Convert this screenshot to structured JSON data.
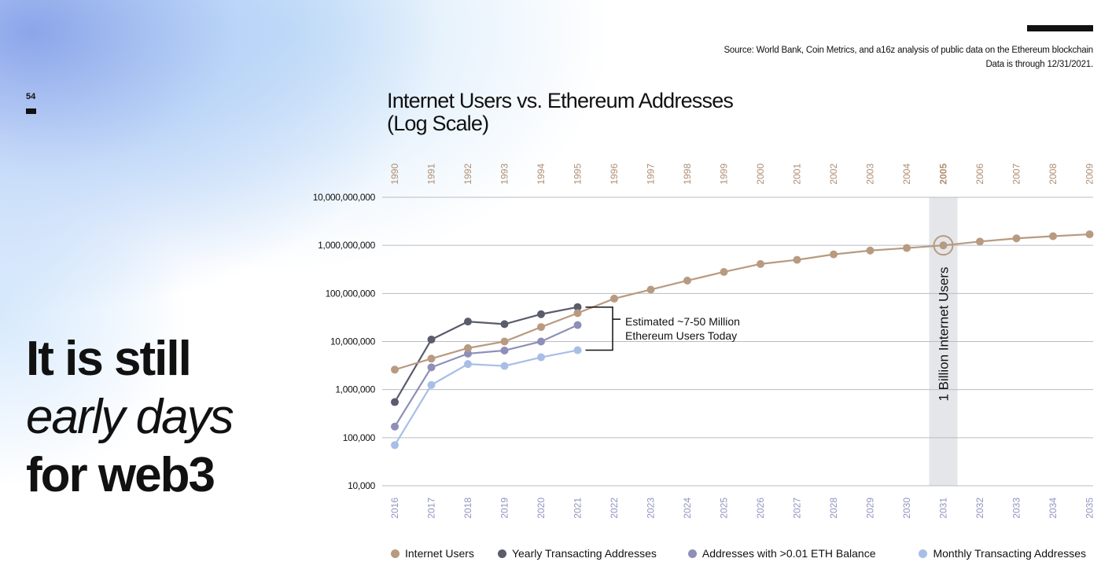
{
  "page": {
    "number": "54",
    "headline_line1": "It is still",
    "headline_line2": "early days",
    "headline_line3": "for web3",
    "source_line1": "Source: World Bank, Coin Metrics, and a16z analysis of public data on the Ethereum blockchain",
    "source_line2": "Data is through 12/31/2021."
  },
  "chart_data": {
    "type": "line",
    "title": "Internet Users vs. Ethereum Addresses",
    "subtitle": "(Log Scale)",
    "y_scale": "log",
    "ylim": [
      10000,
      10000000000
    ],
    "y_ticks": [
      "10,000,000,000",
      "1,000,000,000",
      "100,000,000",
      "10,000,000",
      "1,000,000",
      "100,000",
      "10,000"
    ],
    "y_tick_values": [
      10000000000,
      1000000000,
      100000000,
      10000000,
      1000000,
      100000,
      10000
    ],
    "x_top": [
      "1990",
      "1991",
      "1992",
      "1993",
      "1994",
      "1995",
      "1996",
      "1997",
      "1998",
      "1999",
      "2000",
      "2001",
      "2002",
      "2003",
      "2004",
      "2005",
      "2006",
      "2007",
      "2008",
      "2009"
    ],
    "x_bottom": [
      "2016",
      "2017",
      "2018",
      "2019",
      "2020",
      "2021",
      "2022",
      "2023",
      "2024",
      "2025",
      "2026",
      "2027",
      "2028",
      "2029",
      "2030",
      "2031",
      "2032",
      "2033",
      "2034",
      "2035"
    ],
    "highlight_index": 15,
    "highlight_label": "1 Billion Internet Users",
    "annotation": "Estimated ~7-50 Million Ethereum Users Today",
    "annotation_line1": "Estimated ~7-50 Million",
    "annotation_line2": "Ethereum Users Today",
    "series": [
      {
        "name": "Internet Users",
        "color": "#b89a80",
        "values": [
          2600000,
          4400000,
          7300000,
          10000000,
          20000000,
          39000000,
          78000000,
          120000000,
          185000000,
          280000000,
          410000000,
          500000000,
          650000000,
          780000000,
          880000000,
          1000000000,
          1200000000,
          1400000000,
          1550000000,
          1700000000
        ]
      },
      {
        "name": "Yearly Transacting Addresses",
        "color": "#5a5c6c",
        "values": [
          550000,
          11000000,
          26000000,
          23000000,
          37000000,
          52000000
        ]
      },
      {
        "name": "Addresses with >0.01 ETH Balance",
        "color": "#8e8fb8",
        "values": [
          170000,
          2900000,
          5600000,
          6500000,
          10000000,
          22000000
        ]
      },
      {
        "name": "Monthly Transacting Addresses",
        "color": "#a9bee6",
        "values": [
          70000,
          1250000,
          3400000,
          3100000,
          4700000,
          6600000
        ]
      }
    ]
  }
}
